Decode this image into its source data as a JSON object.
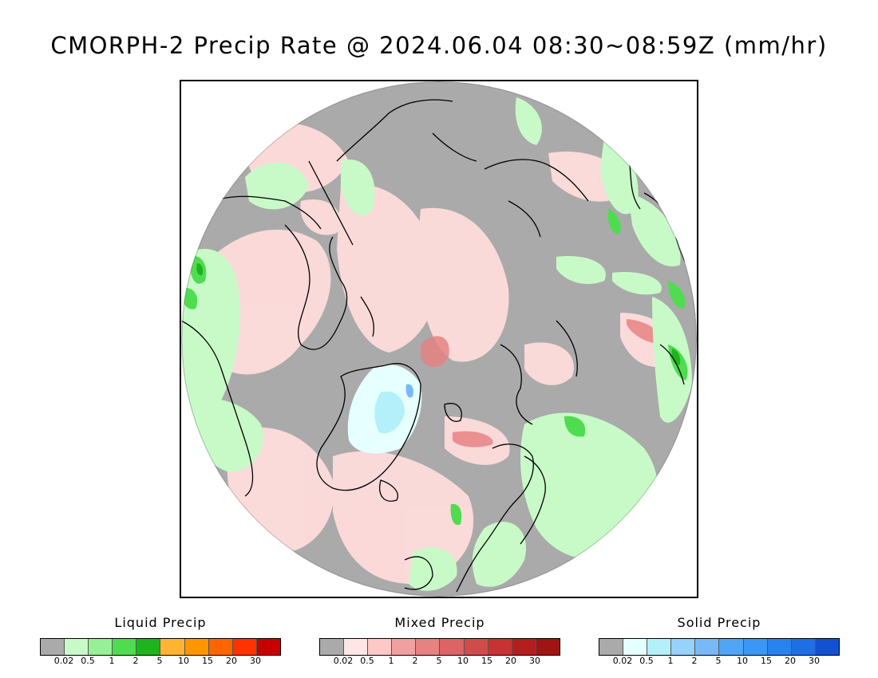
{
  "title": "CMORPH-2 Precip Rate @ 2024.06.04 08:30~08:59Z (mm/hr)",
  "colors": {
    "no_precip": "#aaaaaa",
    "liquid": [
      "#aaaaaa",
      "#c8fac8",
      "#96f096",
      "#50dc50",
      "#1eb41e",
      "#ffb432",
      "#ff9600",
      "#ff6400",
      "#ff3200",
      "#c80000"
    ],
    "mixed": [
      "#aaaaaa",
      "#ffe6e6",
      "#ffc8c8",
      "#f0a0a0",
      "#e68282",
      "#dc6464",
      "#d24b4b",
      "#c83232",
      "#b41e1e",
      "#a01414"
    ],
    "solid": [
      "#aaaaaa",
      "#e6ffff",
      "#b4f0fa",
      "#96d2fa",
      "#78b9fa",
      "#50a5f5",
      "#3c96f5",
      "#2882f0",
      "#1e6ee6",
      "#1450d2"
    ]
  },
  "legends": [
    {
      "id": "liquid",
      "title": "Liquid Precip",
      "ticks": [
        "0.02",
        "0.5",
        "1",
        "2",
        "5",
        "10",
        "15",
        "20",
        "30"
      ]
    },
    {
      "id": "mixed",
      "title": "Mixed Precip",
      "ticks": [
        "0.02",
        "0.5",
        "1",
        "2",
        "5",
        "10",
        "15",
        "20",
        "30"
      ]
    },
    {
      "id": "solid",
      "title": "Solid Precip",
      "ticks": [
        "0.02",
        "0.5",
        "1",
        "2",
        "5",
        "10",
        "15",
        "20",
        "30"
      ]
    }
  ]
}
